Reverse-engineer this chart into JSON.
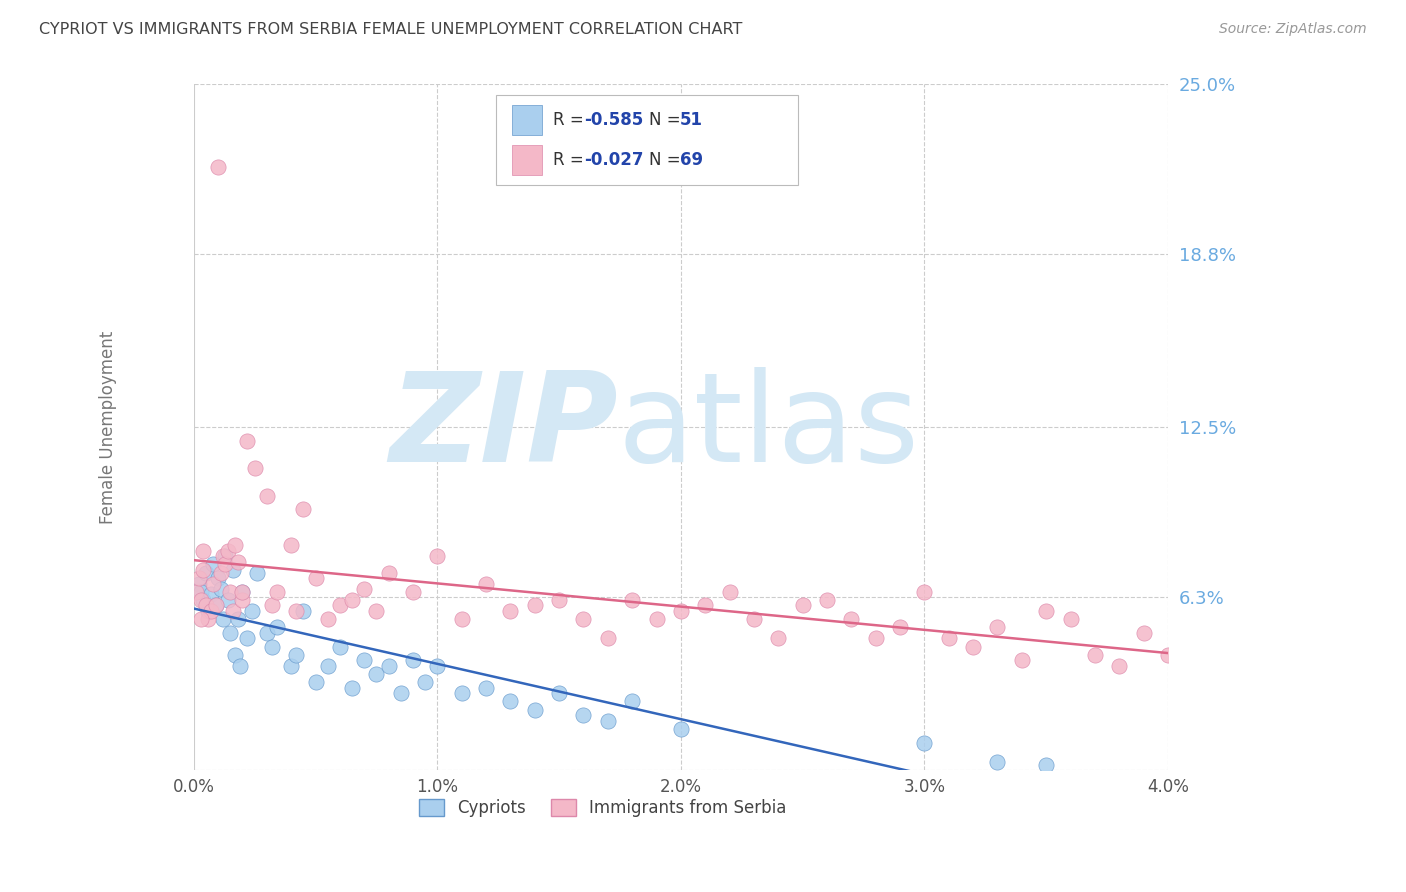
{
  "title": "CYPRIOT VS IMMIGRANTS FROM SERBIA FEMALE UNEMPLOYMENT CORRELATION CHART",
  "source": "Source: ZipAtlas.com",
  "ylabel": "Female Unemployment",
  "series": [
    {
      "label": "Cypriots",
      "color": "#aacfee",
      "edge_color": "#6699cc",
      "line_color": "#3366bb",
      "R": -0.585,
      "N": 51,
      "x": [
        0.0002,
        0.0003,
        0.0004,
        0.0005,
        0.0006,
        0.0007,
        0.0008,
        0.0009,
        0.001,
        0.0011,
        0.0012,
        0.0013,
        0.0014,
        0.0015,
        0.0016,
        0.0017,
        0.0018,
        0.0019,
        0.002,
        0.0022,
        0.0024,
        0.0026,
        0.003,
        0.0032,
        0.0034,
        0.004,
        0.0042,
        0.0045,
        0.005,
        0.0055,
        0.006,
        0.0065,
        0.007,
        0.0075,
        0.008,
        0.0085,
        0.009,
        0.0095,
        0.01,
        0.011,
        0.012,
        0.013,
        0.014,
        0.015,
        0.016,
        0.017,
        0.018,
        0.02,
        0.03,
        0.033,
        0.035
      ],
      "y": [
        0.068,
        0.065,
        0.062,
        0.072,
        0.058,
        0.064,
        0.075,
        0.06,
        0.07,
        0.066,
        0.055,
        0.078,
        0.062,
        0.05,
        0.073,
        0.042,
        0.055,
        0.038,
        0.065,
        0.048,
        0.058,
        0.072,
        0.05,
        0.045,
        0.052,
        0.038,
        0.042,
        0.058,
        0.032,
        0.038,
        0.045,
        0.03,
        0.04,
        0.035,
        0.038,
        0.028,
        0.04,
        0.032,
        0.038,
        0.028,
        0.03,
        0.025,
        0.022,
        0.028,
        0.02,
        0.018,
        0.025,
        0.015,
        0.01,
        0.003,
        0.002
      ]
    },
    {
      "label": "Immigrants from Serbia",
      "color": "#f4b8c8",
      "edge_color": "#dd88aa",
      "line_color": "#dd6688",
      "R": -0.027,
      "N": 69,
      "x": [
        0.0001,
        0.0002,
        0.0003,
        0.0004,
        0.0005,
        0.0006,
        0.0007,
        0.0008,
        0.0009,
        0.001,
        0.0011,
        0.0012,
        0.0013,
        0.0014,
        0.0015,
        0.0016,
        0.0017,
        0.0018,
        0.002,
        0.0022,
        0.0025,
        0.003,
        0.0032,
        0.0034,
        0.004,
        0.0042,
        0.0045,
        0.005,
        0.0055,
        0.006,
        0.0065,
        0.007,
        0.0075,
        0.008,
        0.009,
        0.01,
        0.011,
        0.012,
        0.013,
        0.014,
        0.015,
        0.016,
        0.017,
        0.018,
        0.019,
        0.02,
        0.021,
        0.022,
        0.023,
        0.024,
        0.025,
        0.026,
        0.027,
        0.028,
        0.029,
        0.03,
        0.031,
        0.032,
        0.033,
        0.034,
        0.035,
        0.036,
        0.037,
        0.038,
        0.039,
        0.04,
        0.0003,
        0.0004,
        0.002
      ],
      "y": [
        0.065,
        0.07,
        0.062,
        0.073,
        0.06,
        0.055,
        0.058,
        0.068,
        0.06,
        0.22,
        0.072,
        0.078,
        0.075,
        0.08,
        0.065,
        0.058,
        0.082,
        0.076,
        0.062,
        0.12,
        0.11,
        0.1,
        0.06,
        0.065,
        0.082,
        0.058,
        0.095,
        0.07,
        0.055,
        0.06,
        0.062,
        0.066,
        0.058,
        0.072,
        0.065,
        0.078,
        0.055,
        0.068,
        0.058,
        0.06,
        0.062,
        0.055,
        0.048,
        0.062,
        0.055,
        0.058,
        0.06,
        0.065,
        0.055,
        0.048,
        0.06,
        0.062,
        0.055,
        0.048,
        0.052,
        0.065,
        0.048,
        0.045,
        0.052,
        0.04,
        0.058,
        0.055,
        0.042,
        0.038,
        0.05,
        0.042,
        0.055,
        0.08,
        0.065
      ]
    }
  ],
  "xlim": [
    0.0,
    0.04
  ],
  "ylim": [
    0.0,
    0.25
  ],
  "yticks": [
    0.0,
    0.063,
    0.125,
    0.188,
    0.25
  ],
  "ytick_labels": [
    "",
    "6.3%",
    "12.5%",
    "18.8%",
    "25.0%"
  ],
  "xticks": [
    0.0,
    0.01,
    0.02,
    0.03,
    0.04
  ],
  "xtick_labels": [
    "0.0%",
    "1.0%",
    "2.0%",
    "3.0%",
    "4.0%"
  ],
  "watermark_zip": "ZIP",
  "watermark_atlas": "atlas",
  "watermark_color_zip": "#d4e8f5",
  "watermark_color_atlas": "#d4e8f5",
  "background_color": "#ffffff",
  "title_color": "#444444",
  "source_color": "#999999",
  "tick_color": "#6aaae0",
  "grid_color": "#cccccc",
  "marker_size": 120,
  "legend_color": "#2244aa"
}
